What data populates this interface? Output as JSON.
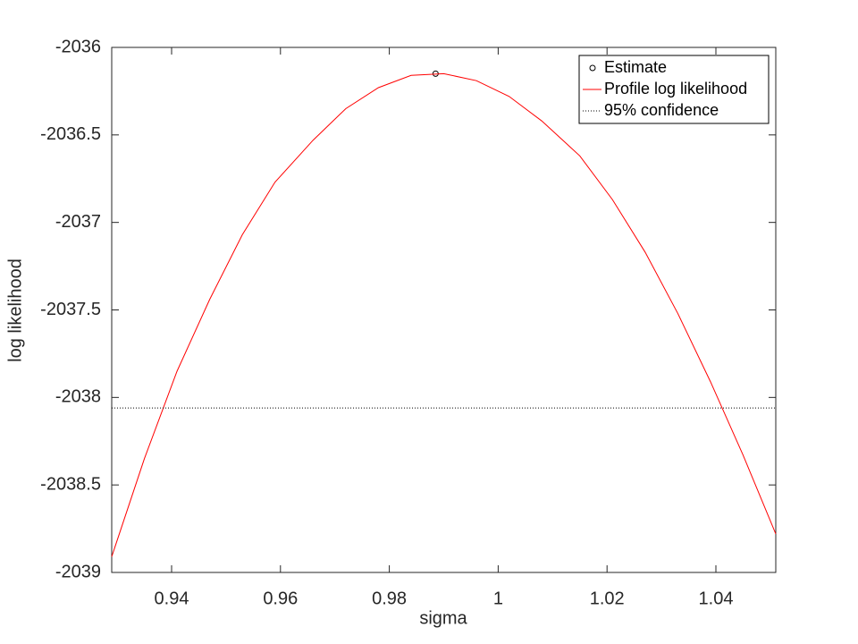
{
  "chart_data": {
    "type": "line",
    "xlabel": "sigma",
    "ylabel": "log likelihood",
    "xlim": [
      0.929,
      1.051
    ],
    "ylim": [
      -2039,
      -2036
    ],
    "xticks": [
      0.94,
      0.96,
      0.98,
      1,
      1.02,
      1.04
    ],
    "yticks": [
      -2036,
      -2036.5,
      -2037,
      -2037.5,
      -2038,
      -2038.5,
      -2039
    ],
    "legend": "top-right",
    "series": [
      {
        "name": "Estimate",
        "color": "#000000",
        "marker": "circle",
        "x": [
          0.9885
        ],
        "values": [
          -2036.15
        ]
      },
      {
        "name": "Profile log likelihood",
        "color": "#ff0000",
        "x": [
          0.929,
          0.935,
          0.941,
          0.947,
          0.953,
          0.959,
          0.966,
          0.972,
          0.978,
          0.984,
          0.99,
          0.996,
          1.002,
          1.008,
          1.015,
          1.021,
          1.027,
          1.033,
          1.039,
          1.045,
          1.051
        ],
        "values": [
          -2038.91,
          -2038.35,
          -2037.85,
          -2037.44,
          -2037.07,
          -2036.77,
          -2036.53,
          -2036.35,
          -2036.23,
          -2036.16,
          -2036.15,
          -2036.19,
          -2036.28,
          -2036.42,
          -2036.62,
          -2036.87,
          -2037.17,
          -2037.52,
          -2037.91,
          -2038.33,
          -2038.78
        ]
      },
      {
        "name": "95% confidence",
        "color": "#000000",
        "dash": "dotted",
        "x": [
          0.929,
          1.051
        ],
        "values": [
          -2038.06,
          -2038.06
        ]
      }
    ]
  }
}
